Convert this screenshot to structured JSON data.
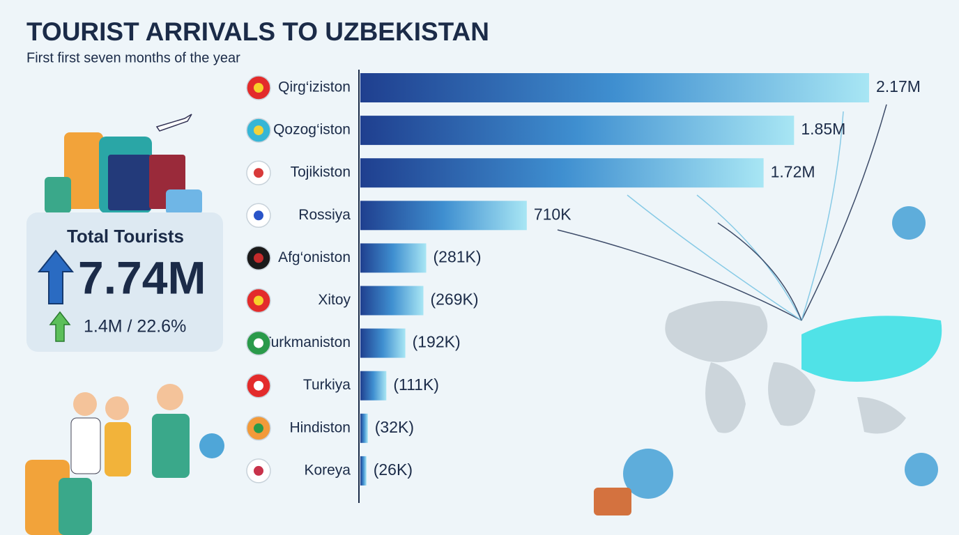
{
  "header": {
    "title": "TOURIST ARRIVALS TO UZBEKISTAN",
    "subtitle": "First first seven months of the year"
  },
  "summary": {
    "label": "Total Tourists",
    "total": "7.74M",
    "growth": "1.4M / 22.6%"
  },
  "chart_data": {
    "type": "hbar",
    "categories": [
      "Qirg‘iziston",
      "Qozog‘iston",
      "Tojikiston",
      "Rossiya",
      "Afg‘oniston",
      "Xitoy",
      "Turkmaniston",
      "Turkiya",
      "Hindiston",
      "Koreya"
    ],
    "values": [
      2170000,
      1850000,
      1720000,
      710000,
      281000,
      269000,
      192000,
      111000,
      32000,
      26000
    ],
    "value_labels": [
      "2.17M",
      "1.85M",
      "1.72M",
      "710K",
      "(281K)",
      "(269K)",
      "(192K)",
      "(111K)",
      "(32K)",
      "(26K)"
    ],
    "color": "#1f4a9a"
  }
}
